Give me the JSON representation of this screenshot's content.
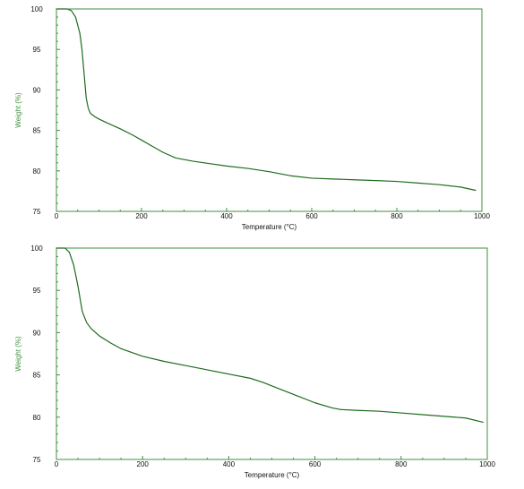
{
  "colors": {
    "axis": "#3f8f3f",
    "curve": "#1f6b1f",
    "text": "#111111",
    "ylabel": "#3f8f3f"
  },
  "chart_data": [
    {
      "type": "line",
      "title": "",
      "xlabel": "Temperature (°C)",
      "ylabel": "Weight (%)",
      "xlim": [
        0,
        1000
      ],
      "ylim": [
        75,
        100
      ],
      "xticks": [
        0,
        200,
        400,
        600,
        800,
        1000
      ],
      "yticks": [
        75,
        80,
        85,
        90,
        95,
        100
      ],
      "xtick_labels": [
        "0",
        "200",
        "400",
        "600",
        "800",
        "1000"
      ],
      "ytick_labels": [
        "75",
        "80",
        "85",
        "90",
        "95",
        "100"
      ],
      "grid": false,
      "series": [
        {
          "x": [
            0,
            25,
            35,
            45,
            55,
            60,
            65,
            70,
            75,
            80,
            90,
            100,
            120,
            150,
            180,
            200,
            220,
            250,
            280,
            320,
            360,
            400,
            450,
            500,
            550,
            600,
            650,
            700,
            750,
            800,
            850,
            900,
            950,
            985
          ],
          "y": [
            100,
            100,
            99.8,
            99,
            97,
            95,
            92,
            89,
            87.7,
            87.1,
            86.7,
            86.4,
            85.9,
            85.2,
            84.4,
            83.8,
            83.2,
            82.3,
            81.6,
            81.2,
            80.9,
            80.6,
            80.3,
            79.9,
            79.4,
            79.1,
            79.0,
            78.9,
            78.8,
            78.7,
            78.5,
            78.3,
            78.0,
            77.6
          ]
        }
      ]
    },
    {
      "type": "line",
      "title": "",
      "xlabel": "Temperature (°C)",
      "ylabel": "Weight (%)",
      "xlim": [
        0,
        1000
      ],
      "ylim": [
        75,
        100
      ],
      "xticks": [
        0,
        200,
        400,
        600,
        800,
        1000
      ],
      "yticks": [
        75,
        80,
        85,
        90,
        95,
        100
      ],
      "xtick_labels": [
        "0",
        "200",
        "400",
        "600",
        "800",
        "1000"
      ],
      "ytick_labels": [
        "75",
        "80",
        "85",
        "90",
        "95",
        "100"
      ],
      "grid": false,
      "series": [
        {
          "x": [
            0,
            20,
            30,
            40,
            50,
            55,
            60,
            70,
            80,
            100,
            125,
            150,
            200,
            250,
            300,
            350,
            400,
            450,
            480,
            520,
            560,
            600,
            640,
            660,
            700,
            750,
            800,
            850,
            900,
            950,
            990
          ],
          "y": [
            100,
            100,
            99.5,
            98,
            95.5,
            94,
            92.5,
            91.2,
            90.5,
            89.6,
            88.8,
            88.1,
            87.2,
            86.6,
            86.1,
            85.6,
            85.1,
            84.6,
            84.1,
            83.3,
            82.5,
            81.7,
            81.1,
            80.9,
            80.8,
            80.7,
            80.5,
            80.3,
            80.1,
            79.9,
            79.4
          ]
        }
      ]
    }
  ]
}
